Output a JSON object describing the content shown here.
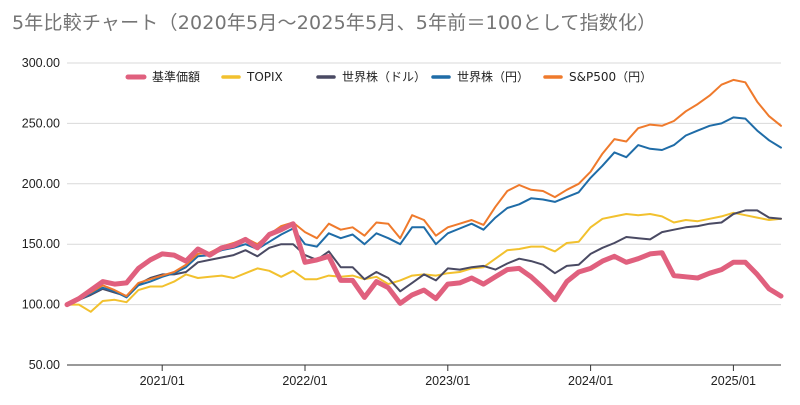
{
  "chart_data": {
    "type": "line",
    "title": "5年比較チャート（2020年5月～2025年5月、5年前＝100として指数化）",
    "xlabel": "",
    "ylabel": "",
    "ylim": [
      50,
      300
    ],
    "y_ticks": [
      "50.00",
      "100.00",
      "150.00",
      "200.00",
      "250.00",
      "300.00"
    ],
    "x_ticks": [
      "2021/01",
      "2022/01",
      "2023/01",
      "2024/01",
      "2025/01"
    ],
    "x": [
      "2020/05",
      "2020/06",
      "2020/07",
      "2020/08",
      "2020/09",
      "2020/10",
      "2020/11",
      "2020/12",
      "2021/01",
      "2021/02",
      "2021/03",
      "2021/04",
      "2021/05",
      "2021/06",
      "2021/07",
      "2021/08",
      "2021/09",
      "2021/10",
      "2021/11",
      "2021/12",
      "2022/01",
      "2022/02",
      "2022/03",
      "2022/04",
      "2022/05",
      "2022/06",
      "2022/07",
      "2022/08",
      "2022/09",
      "2022/10",
      "2022/11",
      "2022/12",
      "2023/01",
      "2023/02",
      "2023/03",
      "2023/04",
      "2023/05",
      "2023/06",
      "2023/07",
      "2023/08",
      "2023/09",
      "2023/10",
      "2023/11",
      "2023/12",
      "2024/01",
      "2024/02",
      "2024/03",
      "2024/04",
      "2024/05",
      "2024/06",
      "2024/07",
      "2024/08",
      "2024/09",
      "2024/10",
      "2024/11",
      "2024/12",
      "2025/01",
      "2025/02",
      "2025/03",
      "2025/04",
      "2025/05"
    ],
    "grid": true,
    "legend_position": "top",
    "series": [
      {
        "name": "基準価額",
        "color": "#e0607e",
        "width": 5,
        "values": [
          100,
          105,
          112,
          119,
          117,
          118,
          130,
          137,
          142,
          141,
          136,
          146,
          141,
          147,
          149,
          154,
          147,
          158,
          162,
          167,
          135,
          137,
          140,
          120,
          120,
          106,
          119,
          114,
          101,
          108,
          112,
          105,
          117,
          118,
          122,
          117,
          123,
          129,
          130,
          123,
          114,
          104,
          119,
          127,
          130,
          136,
          140,
          135,
          138,
          142,
          143,
          124,
          123,
          122,
          126,
          129,
          135,
          135,
          125,
          113,
          107
        ]
      },
      {
        "name": "TOPIX",
        "color": "#f2c12e",
        "width": 2,
        "values": [
          100,
          100,
          94,
          103,
          104,
          102,
          112,
          115,
          115,
          119,
          125,
          122,
          123,
          124,
          122,
          126,
          130,
          128,
          123,
          128,
          121,
          121,
          124,
          123,
          124,
          121,
          123,
          117,
          120,
          124,
          125,
          124,
          126,
          127,
          130,
          131,
          138,
          145,
          146,
          148,
          148,
          144,
          151,
          152,
          164,
          171,
          173,
          175,
          174,
          175,
          173,
          168,
          170,
          169,
          171,
          173,
          176,
          174,
          172,
          170,
          171
        ]
      },
      {
        "name": "世界株（ドル）",
        "color": "#4a4a63",
        "width": 2,
        "values": [
          100,
          104,
          108,
          113,
          110,
          107,
          117,
          122,
          125,
          125,
          127,
          135,
          137,
          139,
          141,
          145,
          140,
          147,
          150,
          150,
          141,
          137,
          144,
          131,
          131,
          121,
          127,
          122,
          111,
          118,
          125,
          120,
          130,
          129,
          131,
          132,
          129,
          134,
          138,
          136,
          133,
          126,
          132,
          133,
          142,
          147,
          151,
          156,
          155,
          154,
          160,
          162,
          164,
          165,
          167,
          168,
          175,
          178,
          178,
          172,
          171
        ]
      },
      {
        "name": "世界株（円）",
        "color": "#1f6ca7",
        "width": 2,
        "values": [
          100,
          104,
          109,
          114,
          111,
          106,
          116,
          119,
          123,
          126,
          131,
          140,
          141,
          145,
          147,
          150,
          146,
          152,
          158,
          163,
          150,
          148,
          159,
          155,
          158,
          150,
          159,
          155,
          150,
          164,
          164,
          150,
          159,
          163,
          167,
          162,
          172,
          180,
          183,
          188,
          187,
          185,
          189,
          193,
          205,
          215,
          226,
          222,
          232,
          229,
          228,
          232,
          240,
          244,
          248,
          250,
          255,
          254,
          244,
          236,
          230
        ]
      },
      {
        "name": "S&P500（円）",
        "color": "#ef7a2c",
        "width": 2,
        "values": [
          100,
          105,
          110,
          116,
          112,
          107,
          118,
          121,
          124,
          127,
          133,
          142,
          143,
          148,
          151,
          155,
          150,
          158,
          165,
          168,
          160,
          155,
          167,
          162,
          164,
          157,
          168,
          167,
          155,
          174,
          170,
          157,
          164,
          167,
          170,
          166,
          181,
          194,
          199,
          195,
          194,
          189,
          195,
          200,
          210,
          225,
          237,
          235,
          246,
          249,
          248,
          252,
          260,
          266,
          273,
          282,
          286,
          284,
          268,
          256,
          248
        ]
      }
    ]
  }
}
